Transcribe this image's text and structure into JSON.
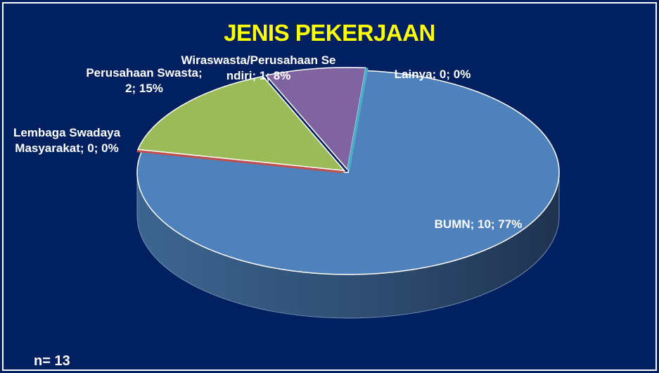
{
  "chart_data": {
    "type": "pie",
    "title": "JENIS PEKERJAAN",
    "values": [
      10,
      0,
      2,
      1,
      0
    ],
    "value_labels": [
      "BUMN; 10; 77%",
      "Lembaga Swadaya Masyarakat; 0; 0%",
      "Perusahaan Swasta; 2; 15%",
      "Wiraswasta/Perusahaan Sendiri; 1; 8%",
      "Lainya; 0; 0%"
    ],
    "colors": [
      "#4f81bd",
      "#c0504d",
      "#9bbb59",
      "#8064a2",
      "#4bacc6"
    ],
    "annotation": "n= 13"
  }
}
